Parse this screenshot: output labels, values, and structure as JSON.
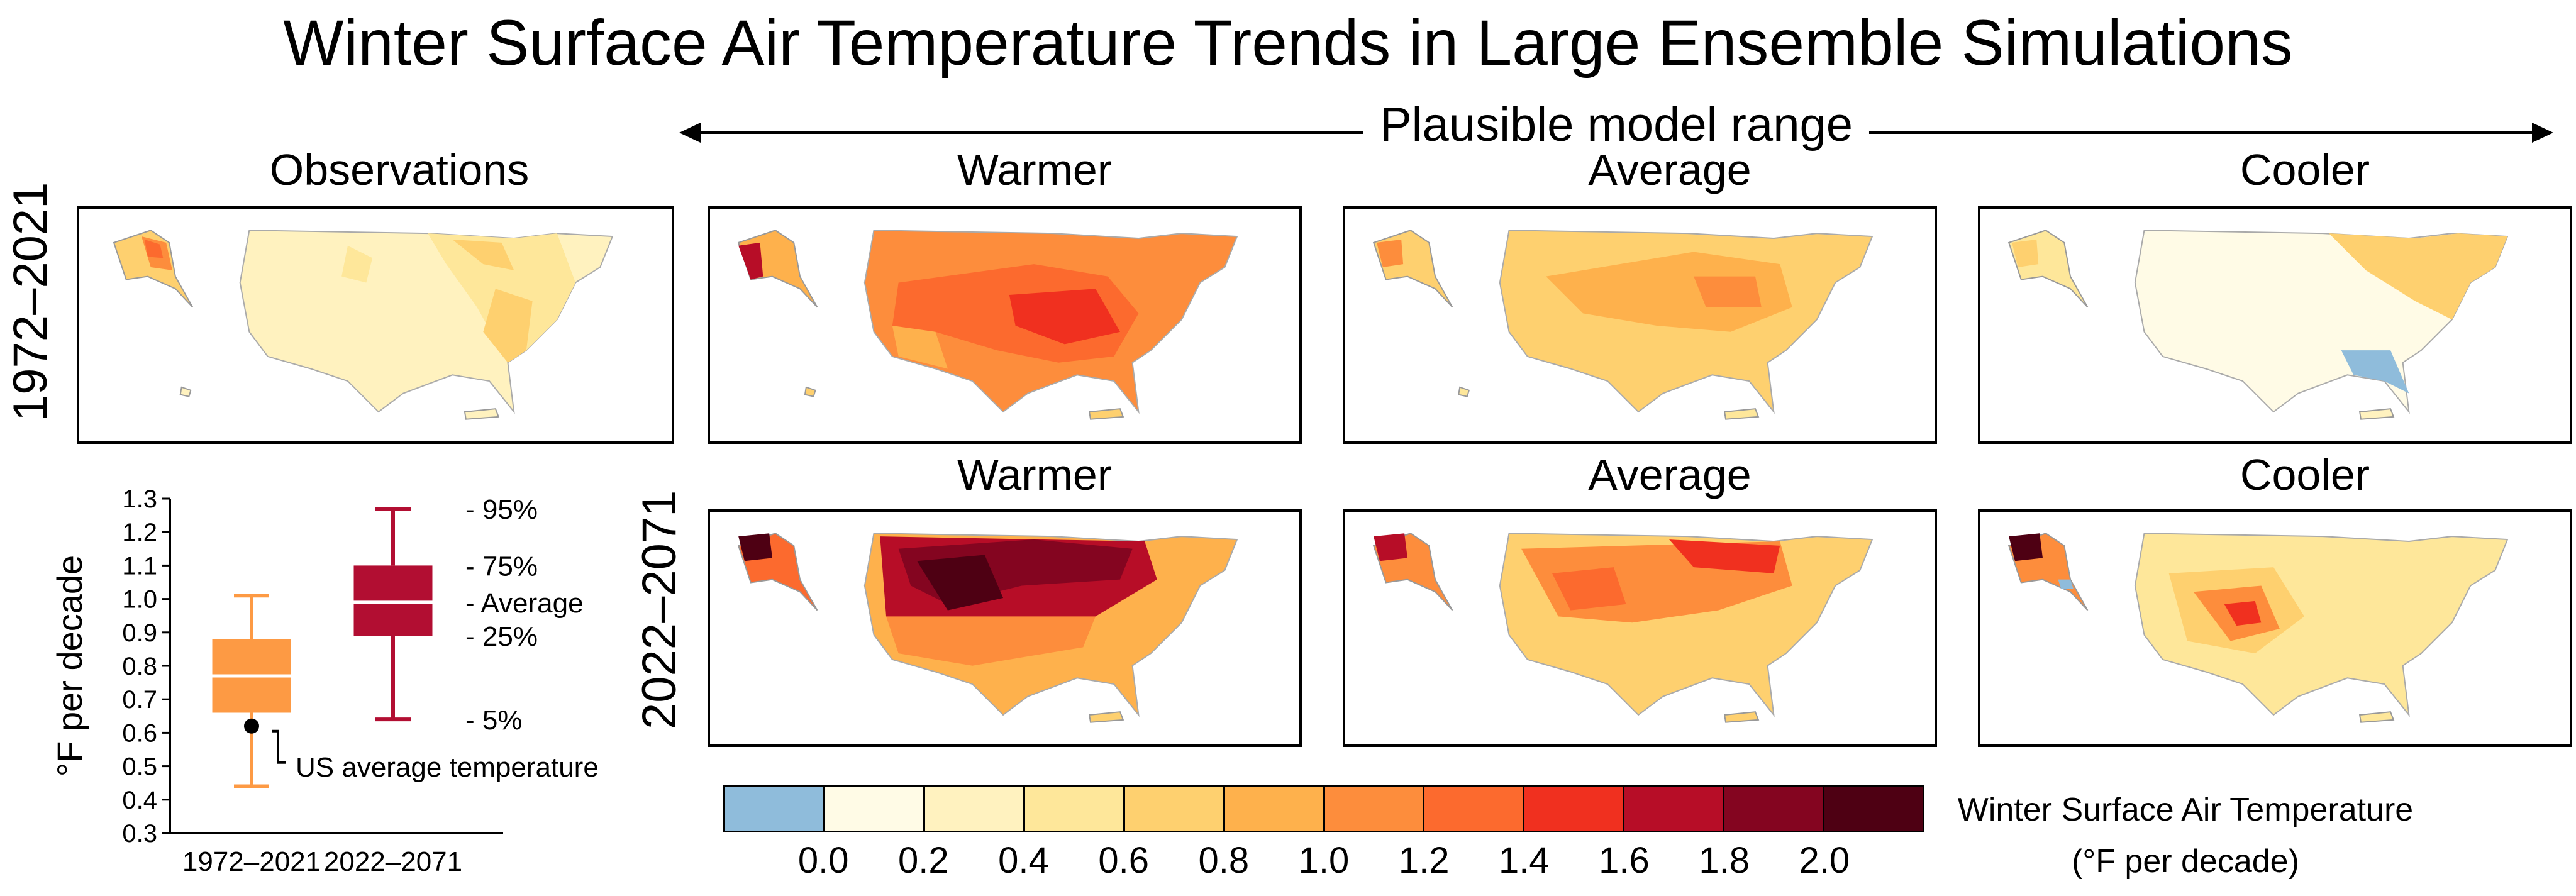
{
  "title": "Winter Surface Air Temperature Trends in Large Ensemble Simulations",
  "range_label": "Plausible model range",
  "row_labels": [
    "1972–2021",
    "2022–2071"
  ],
  "maps": {
    "observations": "Observations",
    "warmer_1": "Warmer",
    "average_1": "Average",
    "cooler_1": "Cooler",
    "warmer_2": "Warmer",
    "average_2": "Average",
    "cooler_2": "Cooler"
  },
  "colorbar": {
    "title_line1": "Winter Surface Air Temperature",
    "title_line2": "(°F per decade)",
    "colors": [
      "#8fbcdb",
      "#fffbe6",
      "#fff2bf",
      "#fee79a",
      "#fed06f",
      "#feb14c",
      "#fd8d3c",
      "#fc6a2e",
      "#f0301f",
      "#b70d27",
      "#840520",
      "#4e0013"
    ],
    "ticks": [
      "0.0",
      "0.2",
      "0.4",
      "0.6",
      "0.8",
      "1.0",
      "1.2",
      "1.4",
      "1.6",
      "1.8",
      "2.0"
    ]
  },
  "chart_data": {
    "type": "box",
    "ylabel": "°F per decade",
    "ylim": [
      0.3,
      1.3
    ],
    "yticks": [
      "0.3",
      "0.4",
      "0.5",
      "0.6",
      "0.7",
      "0.8",
      "0.9",
      "1.0",
      "1.1",
      "1.2",
      "1.3"
    ],
    "categories": [
      "1972–2021",
      "2022–2071"
    ],
    "boxes": [
      {
        "category": "1972–2021",
        "p5": 0.44,
        "p25": 0.66,
        "mean": 0.77,
        "p75": 0.88,
        "p95": 1.01,
        "color": "#fd9a44"
      },
      {
        "category": "2022–2071",
        "p5": 0.64,
        "p25": 0.89,
        "mean": 0.99,
        "p75": 1.1,
        "p95": 1.27,
        "color": "#b20e32"
      }
    ],
    "observation": {
      "category": "1972–2021",
      "value": 0.62,
      "label": "US average temperature"
    },
    "annotations": [
      "- 95%",
      "- 75%",
      "- Average",
      "- 25%",
      "- 5%"
    ]
  }
}
